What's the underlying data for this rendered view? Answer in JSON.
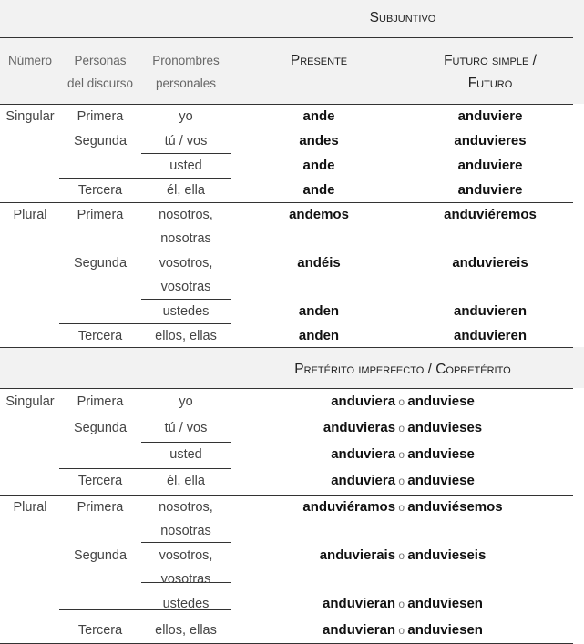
{
  "subjuntivo": {
    "title": "Subjuntivo",
    "headers": {
      "numero": "Número",
      "personas": [
        "Personas",
        "del discurso"
      ],
      "pronombres": [
        "Pronombres",
        "personales"
      ],
      "presente": "Presente",
      "futuro": [
        "Futuro simple /",
        "Futuro"
      ]
    },
    "rows": [
      {
        "numero": "Singular",
        "persona": "Primera",
        "pronombre": [
          "yo"
        ],
        "presente": "ande",
        "futuro": "anduviere"
      },
      {
        "numero": "",
        "persona": "Segunda",
        "pronombre": [
          "tú / vos"
        ],
        "presente": "andes",
        "futuro": "anduvieres"
      },
      {
        "numero": "",
        "persona": "",
        "pronombre": [
          "usted"
        ],
        "presente": "ande",
        "futuro": "anduviere"
      },
      {
        "numero": "",
        "persona": "Tercera",
        "pronombre": [
          "él, ella"
        ],
        "presente": "ande",
        "futuro": "anduviere"
      },
      {
        "numero": "Plural",
        "persona": "Primera",
        "pronombre": [
          "nosotros,",
          "nosotras"
        ],
        "presente": "andemos",
        "futuro": "anduviéremos"
      },
      {
        "numero": "",
        "persona": "Segunda",
        "pronombre": [
          "vosotros,",
          "vosotras"
        ],
        "presente": "andéis",
        "futuro": "anduviereis"
      },
      {
        "numero": "",
        "persona": "",
        "pronombre": [
          "ustedes"
        ],
        "presente": "anden",
        "futuro": "anduvieren"
      },
      {
        "numero": "",
        "persona": "Tercera",
        "pronombre": [
          "ellos, ellas"
        ],
        "presente": "anden",
        "futuro": "anduvieren"
      }
    ]
  },
  "preterito": {
    "title": "Pretérito imperfecto / Copretérito",
    "connector": "o",
    "rows": [
      {
        "numero": "Singular",
        "persona": "Primera",
        "pronombre": [
          "yo"
        ],
        "forma1": "anduviera",
        "forma2": "anduviese"
      },
      {
        "numero": "",
        "persona": "Segunda",
        "pronombre": [
          "tú / vos"
        ],
        "forma1": "anduvieras",
        "forma2": "anduvieses"
      },
      {
        "numero": "",
        "persona": "",
        "pronombre": [
          "usted"
        ],
        "forma1": "anduviera",
        "forma2": "anduviese"
      },
      {
        "numero": "",
        "persona": "Tercera",
        "pronombre": [
          "él, ella"
        ],
        "forma1": "anduviera",
        "forma2": "anduviese"
      },
      {
        "numero": "Plural",
        "persona": "Primera",
        "pronombre": [
          "nosotros,",
          "nosotras"
        ],
        "forma1": "anduviéramos",
        "forma2": "anduviésemos"
      },
      {
        "numero": "",
        "persona": "Segunda",
        "pronombre": [
          "vosotros,",
          "vosotras"
        ],
        "forma1": "anduvierais",
        "forma2": "anduvieseis"
      },
      {
        "numero": "",
        "persona": "",
        "pronombre": [
          "ustedes"
        ],
        "forma1": "anduvieran",
        "forma2": "anduviesen"
      },
      {
        "numero": "",
        "persona": "Tercera",
        "pronombre": [
          "ellos, ellas"
        ],
        "forma1": "anduvieran",
        "forma2": "anduviesen"
      }
    ]
  }
}
